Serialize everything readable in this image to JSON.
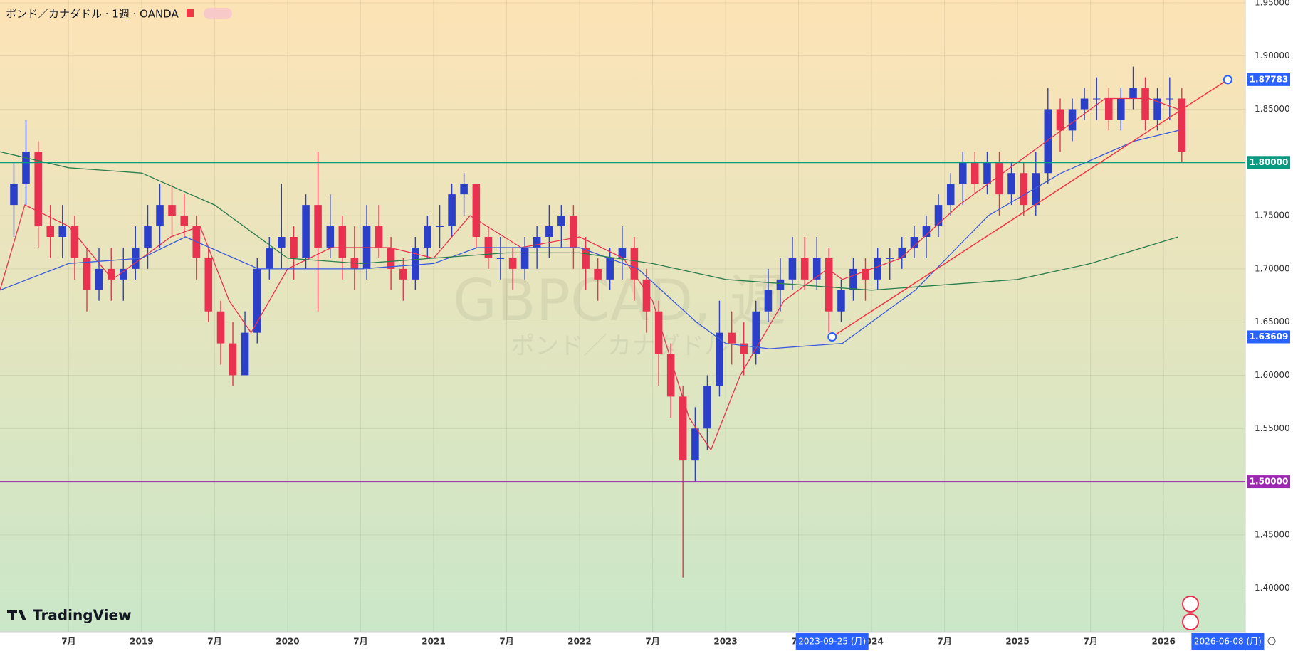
{
  "chart_data": {
    "type": "candlestick",
    "title": "ポンド／カナダドル · 1週 · OANDA",
    "watermark": "GBPCAD, 週",
    "watermark_subtitle": "ポンド／カナダドル",
    "logo": "TradingView",
    "up_color": "#2b3fc9",
    "down_color": "#e8324f",
    "grid": true,
    "xlim": [
      2018.03,
      2026.56
    ],
    "ylim": [
      1.359,
      1.9526
    ],
    "xticks": [
      {
        "value": 2018.5,
        "label": "7月"
      },
      {
        "value": 2019,
        "label": "2019"
      },
      {
        "value": 2019.5,
        "label": "7月"
      },
      {
        "value": 2020,
        "label": "2020"
      },
      {
        "value": 2020.5,
        "label": "7月"
      },
      {
        "value": 2021,
        "label": "2021"
      },
      {
        "value": 2021.5,
        "label": "7月"
      },
      {
        "value": 2022,
        "label": "2022"
      },
      {
        "value": 2022.5,
        "label": "7月"
      },
      {
        "value": 2023,
        "label": "2023"
      },
      {
        "value": 2023.5,
        "label": "7月"
      },
      {
        "value": 2024,
        "label": "2024"
      },
      {
        "value": 2024.5,
        "label": "7月"
      },
      {
        "value": 2025,
        "label": "2025"
      },
      {
        "value": 2025.5,
        "label": "7月"
      },
      {
        "value": 2026,
        "label": "2026"
      }
    ],
    "yticks": [
      {
        "value": 1.4,
        "label": "1.40000"
      },
      {
        "value": 1.45,
        "label": "1.45000"
      },
      {
        "value": 1.5,
        "label": "1.50000"
      },
      {
        "value": 1.55,
        "label": "1.55000"
      },
      {
        "value": 1.6,
        "label": "1.60000"
      },
      {
        "value": 1.65,
        "label": "1.65000"
      },
      {
        "value": 1.7,
        "label": "1.70000"
      },
      {
        "value": 1.75,
        "label": "1.75000"
      },
      {
        "value": 1.8,
        "label": "1.80000"
      },
      {
        "value": 1.85,
        "label": "1.85000"
      },
      {
        "value": 1.9,
        "label": "1.90000"
      },
      {
        "value": 1.95,
        "label": "1.95000"
      }
    ],
    "x": [
      2018.125,
      2018.208,
      2018.292,
      2018.375,
      2018.458,
      2018.542,
      2018.625,
      2018.708,
      2018.792,
      2018.875,
      2018.958,
      2019.042,
      2019.125,
      2019.208,
      2019.292,
      2019.375,
      2019.458,
      2019.542,
      2019.625,
      2019.708,
      2019.792,
      2019.875,
      2019.958,
      2020.042,
      2020.125,
      2020.208,
      2020.292,
      2020.375,
      2020.458,
      2020.542,
      2020.625,
      2020.708,
      2020.792,
      2020.875,
      2020.958,
      2021.042,
      2021.125,
      2021.208,
      2021.292,
      2021.375,
      2021.458,
      2021.542,
      2021.625,
      2021.708,
      2021.792,
      2021.875,
      2021.958,
      2022.042,
      2022.125,
      2022.208,
      2022.292,
      2022.375,
      2022.458,
      2022.542,
      2022.625,
      2022.708,
      2022.792,
      2022.875,
      2022.958,
      2023.042,
      2023.125,
      2023.208,
      2023.292,
      2023.375,
      2023.458,
      2023.542,
      2023.625,
      2023.708,
      2023.792,
      2023.875,
      2023.958,
      2024.042,
      2024.125,
      2024.208,
      2024.292,
      2024.375,
      2024.458,
      2024.542,
      2024.625,
      2024.708,
      2024.792,
      2024.875,
      2024.958,
      2025.042,
      2025.125,
      2025.208,
      2025.292,
      2025.375,
      2025.458,
      2025.542,
      2025.625,
      2025.708,
      2025.792,
      2025.875,
      2025.958,
      2026.042,
      2026.125
    ],
    "open": [
      1.76,
      1.78,
      1.81,
      1.74,
      1.73,
      1.74,
      1.71,
      1.68,
      1.7,
      1.69,
      1.7,
      1.72,
      1.74,
      1.76,
      1.75,
      1.74,
      1.71,
      1.66,
      1.63,
      1.6,
      1.64,
      1.7,
      1.72,
      1.73,
      1.71,
      1.76,
      1.72,
      1.74,
      1.71,
      1.7,
      1.74,
      1.72,
      1.7,
      1.69,
      1.72,
      1.74,
      1.74,
      1.77,
      1.78,
      1.73,
      1.71,
      1.71,
      1.7,
      1.72,
      1.73,
      1.74,
      1.75,
      1.72,
      1.7,
      1.69,
      1.71,
      1.72,
      1.69,
      1.66,
      1.62,
      1.58,
      1.52,
      1.55,
      1.59,
      1.64,
      1.63,
      1.62,
      1.66,
      1.68,
      1.69,
      1.71,
      1.69,
      1.71,
      1.66,
      1.68,
      1.7,
      1.69,
      1.71,
      1.71,
      1.72,
      1.73,
      1.74,
      1.76,
      1.78,
      1.8,
      1.78,
      1.8,
      1.77,
      1.79,
      1.76,
      1.79,
      1.85,
      1.83,
      1.85,
      1.86,
      1.86,
      1.84,
      1.86,
      1.87,
      1.84,
      1.86,
      1.86
    ],
    "high": [
      1.8,
      1.84,
      1.82,
      1.76,
      1.76,
      1.75,
      1.72,
      1.72,
      1.72,
      1.72,
      1.74,
      1.76,
      1.78,
      1.78,
      1.77,
      1.75,
      1.72,
      1.67,
      1.65,
      1.66,
      1.71,
      1.73,
      1.78,
      1.74,
      1.77,
      1.81,
      1.77,
      1.75,
      1.74,
      1.76,
      1.76,
      1.73,
      1.71,
      1.73,
      1.75,
      1.76,
      1.78,
      1.79,
      1.78,
      1.74,
      1.73,
      1.72,
      1.73,
      1.74,
      1.76,
      1.76,
      1.76,
      1.73,
      1.71,
      1.72,
      1.74,
      1.73,
      1.7,
      1.67,
      1.63,
      1.59,
      1.57,
      1.6,
      1.67,
      1.66,
      1.65,
      1.67,
      1.7,
      1.71,
      1.73,
      1.73,
      1.73,
      1.72,
      1.69,
      1.71,
      1.71,
      1.72,
      1.72,
      1.73,
      1.74,
      1.75,
      1.77,
      1.79,
      1.81,
      1.81,
      1.81,
      1.81,
      1.8,
      1.8,
      1.81,
      1.87,
      1.86,
      1.86,
      1.87,
      1.88,
      1.87,
      1.87,
      1.89,
      1.88,
      1.87,
      1.88,
      1.87
    ],
    "low": [
      1.73,
      1.76,
      1.72,
      1.71,
      1.71,
      1.69,
      1.66,
      1.67,
      1.67,
      1.67,
      1.69,
      1.7,
      1.72,
      1.73,
      1.73,
      1.69,
      1.65,
      1.61,
      1.59,
      1.6,
      1.63,
      1.69,
      1.7,
      1.69,
      1.7,
      1.66,
      1.71,
      1.69,
      1.68,
      1.69,
      1.71,
      1.68,
      1.67,
      1.68,
      1.71,
      1.72,
      1.73,
      1.75,
      1.72,
      1.7,
      1.69,
      1.68,
      1.69,
      1.7,
      1.71,
      1.72,
      1.7,
      1.68,
      1.67,
      1.68,
      1.69,
      1.67,
      1.64,
      1.59,
      1.56,
      1.41,
      1.5,
      1.53,
      1.58,
      1.61,
      1.6,
      1.61,
      1.65,
      1.66,
      1.68,
      1.68,
      1.68,
      1.64,
      1.65,
      1.67,
      1.67,
      1.68,
      1.69,
      1.7,
      1.71,
      1.71,
      1.73,
      1.75,
      1.76,
      1.77,
      1.77,
      1.75,
      1.76,
      1.75,
      1.75,
      1.78,
      1.81,
      1.82,
      1.84,
      1.84,
      1.83,
      1.83,
      1.85,
      1.83,
      1.83,
      1.84,
      1.8
    ],
    "close": [
      1.78,
      1.81,
      1.74,
      1.73,
      1.74,
      1.71,
      1.68,
      1.7,
      1.69,
      1.7,
      1.72,
      1.74,
      1.76,
      1.75,
      1.74,
      1.71,
      1.66,
      1.63,
      1.6,
      1.64,
      1.7,
      1.72,
      1.73,
      1.71,
      1.76,
      1.72,
      1.74,
      1.71,
      1.7,
      1.74,
      1.72,
      1.7,
      1.69,
      1.72,
      1.74,
      1.74,
      1.77,
      1.78,
      1.73,
      1.71,
      1.71,
      1.7,
      1.72,
      1.73,
      1.74,
      1.75,
      1.72,
      1.7,
      1.69,
      1.71,
      1.72,
      1.69,
      1.66,
      1.62,
      1.58,
      1.52,
      1.55,
      1.59,
      1.64,
      1.63,
      1.62,
      1.66,
      1.68,
      1.69,
      1.71,
      1.69,
      1.71,
      1.66,
      1.68,
      1.7,
      1.69,
      1.71,
      1.71,
      1.72,
      1.73,
      1.74,
      1.76,
      1.78,
      1.8,
      1.78,
      1.8,
      1.77,
      1.79,
      1.76,
      1.79,
      1.85,
      1.83,
      1.85,
      1.86,
      1.86,
      1.84,
      1.86,
      1.87,
      1.84,
      1.86,
      1.86,
      1.81
    ],
    "lines": [
      {
        "color": "#e8324f",
        "x": [
          2018.03,
          2018.2,
          2018.5,
          2018.8,
          2019.2,
          2019.4,
          2019.6,
          2019.75,
          2020.0,
          2020.3,
          2020.7,
          2021.0,
          2021.25,
          2021.6,
          2022.0,
          2022.3,
          2022.5,
          2022.75,
          2022.9,
          2023.1,
          2023.4,
          2023.7,
          2023.8,
          2024.2,
          2024.6,
          2024.9,
          2025.3,
          2025.6,
          2025.9,
          2026.1
        ],
        "values": [
          1.68,
          1.76,
          1.74,
          1.69,
          1.73,
          1.74,
          1.67,
          1.64,
          1.7,
          1.72,
          1.72,
          1.71,
          1.75,
          1.72,
          1.73,
          1.71,
          1.67,
          1.56,
          1.53,
          1.6,
          1.67,
          1.7,
          1.69,
          1.71,
          1.76,
          1.79,
          1.83,
          1.86,
          1.86,
          1.85
        ]
      },
      {
        "color": "#3b5bdb",
        "x": [
          2018.03,
          2018.5,
          2019.0,
          2019.3,
          2019.8,
          2020.5,
          2021.0,
          2021.3,
          2022.0,
          2022.4,
          2022.8,
          2023.0,
          2023.3,
          2023.8,
          2024.3,
          2024.8,
          2025.3,
          2025.8,
          2026.1
        ],
        "values": [
          1.68,
          1.705,
          1.71,
          1.73,
          1.7,
          1.7,
          1.705,
          1.72,
          1.72,
          1.7,
          1.65,
          1.63,
          1.625,
          1.63,
          1.68,
          1.75,
          1.79,
          1.82,
          1.83
        ]
      },
      {
        "color": "#2e7d4f",
        "x": [
          2018.03,
          2018.5,
          2019.0,
          2019.5,
          2020.0,
          2020.5,
          2021.0,
          2021.5,
          2022.0,
          2022.5,
          2023.0,
          2023.5,
          2024.0,
          2024.5,
          2025.0,
          2025.5,
          2026.1
        ],
        "values": [
          1.81,
          1.795,
          1.79,
          1.76,
          1.71,
          1.705,
          1.71,
          1.715,
          1.715,
          1.705,
          1.69,
          1.685,
          1.68,
          1.685,
          1.69,
          1.705,
          1.73
        ]
      }
    ],
    "hlines": [
      {
        "value": 1.8,
        "label": "1.80000",
        "color": "#089981"
      },
      {
        "value": 1.5,
        "label": "1.50000",
        "color": "#9c27b0"
      }
    ],
    "trendline": {
      "color": "#f23645",
      "label_color": "#2962ff",
      "x": [
        2023.73,
        2026.44
      ],
      "y": [
        1.63609,
        1.87783
      ],
      "y_labels": [
        "1.63609",
        "1.87783"
      ],
      "x_labels": [
        "2023-09-25 (月)",
        "2026-06-08 (月)"
      ]
    }
  }
}
